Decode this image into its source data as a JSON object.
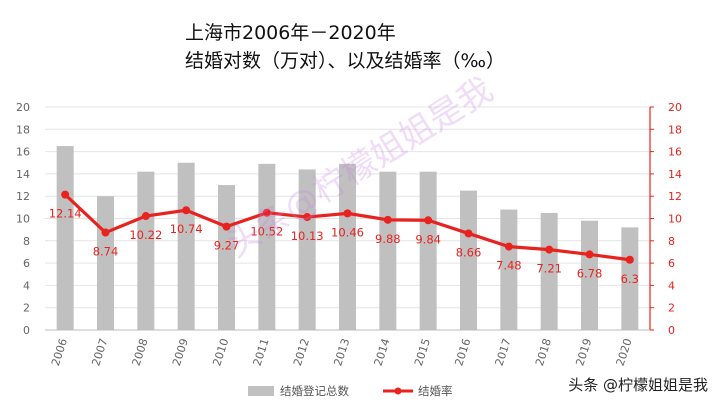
{
  "title": {
    "line1": "上海市2006年－2020年",
    "line2": "结婚对数（万对）、以及结婚率（‰）"
  },
  "watermark": "头条@柠檬姐姐是我",
  "source_tag": "头条 @柠檬姐姐是我",
  "chart_data": {
    "type": "bar",
    "categories": [
      "2006",
      "2007",
      "2008",
      "2009",
      "2010",
      "2011",
      "2012",
      "2013",
      "2014",
      "2015",
      "2016",
      "2017",
      "2018",
      "2019",
      "2020"
    ],
    "series": [
      {
        "name": "结婚登记总数",
        "type": "bar",
        "axis": "left",
        "color": "#c0c0c0",
        "values": [
          16.5,
          12.0,
          14.2,
          15.0,
          13.0,
          14.9,
          14.4,
          14.9,
          14.2,
          14.2,
          12.5,
          10.8,
          10.5,
          9.8,
          9.2
        ]
      },
      {
        "name": "结婚率",
        "type": "line",
        "axis": "right",
        "color": "#e8231f",
        "values": [
          12.14,
          8.74,
          10.22,
          10.74,
          9.27,
          10.52,
          10.13,
          10.46,
          9.88,
          9.84,
          8.66,
          7.48,
          7.21,
          6.78,
          6.3
        ],
        "labels": [
          "12.14",
          "8.74",
          "10.22",
          "10.74",
          "9.27",
          "10.52",
          "10.13",
          "10.46",
          "9.88",
          "9.84",
          "8.66",
          "7.48",
          "7.21",
          "6.78",
          "6.3"
        ]
      }
    ],
    "left_axis": {
      "min": 0,
      "max": 20,
      "ticks": [
        "0",
        "2",
        "4",
        "6",
        "8",
        "10",
        "12",
        "14",
        "16",
        "18",
        "20"
      ],
      "color": "#666666"
    },
    "right_axis": {
      "min": 0,
      "max": 20,
      "ticks": [
        "0",
        "2",
        "4",
        "6",
        "8",
        "10",
        "12",
        "14",
        "16",
        "18",
        "20"
      ],
      "color": "#e8231f"
    },
    "grid": true,
    "legend_position": "bottom"
  }
}
